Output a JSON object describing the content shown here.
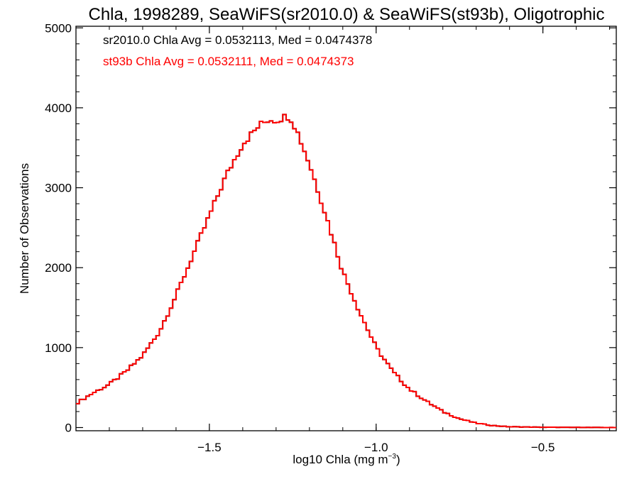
{
  "chart_data": {
    "type": "line",
    "title": "Chla, 1998289, SeaWiFS(sr2010.0) & SeaWiFS(st93b), Oligotrophic",
    "xlabel_prefix": "log10 Chla (mg m",
    "xlabel_exponent": "−3",
    "xlabel_suffix": ")",
    "ylabel": "Number of Observations",
    "xlim": [
      -1.9,
      -0.28
    ],
    "ylim": [
      -40,
      5020
    ],
    "x_ticks": [
      -1.5,
      -1.0,
      -0.5
    ],
    "x_tick_labels": [
      "−1.5",
      "−1.0",
      "−0.5"
    ],
    "y_ticks": [
      0,
      1000,
      2000,
      3000,
      4000,
      5000
    ],
    "y_tick_labels": [
      "0",
      "1000",
      "2000",
      "3000",
      "4000",
      "5000"
    ],
    "annotations": [
      {
        "text": "sr2010.0 Chla Avg = 0.0532113, Med = 0.0474378",
        "color": "#000000"
      },
      {
        "text": "st93b Chla Avg = 0.0532111, Med = 0.0474373",
        "color": "#ff0000"
      }
    ],
    "series": [
      {
        "name": "sr2010.0",
        "color": "#000000",
        "x": [
          -1.9,
          -1.85,
          -1.8,
          -1.75,
          -1.7,
          -1.65,
          -1.6,
          -1.55,
          -1.5,
          -1.45,
          -1.4,
          -1.35,
          -1.32,
          -1.3,
          -1.28,
          -1.26,
          -1.24,
          -1.2,
          -1.15,
          -1.1,
          -1.05,
          -1.0,
          -0.95,
          -0.9,
          -0.85,
          -0.8,
          -0.75,
          -0.7,
          -0.65,
          -0.6,
          -0.5,
          -0.4,
          -0.28
        ],
        "y": [
          300,
          430,
          540,
          700,
          900,
          1200,
          1650,
          2150,
          2650,
          3150,
          3550,
          3780,
          3860,
          3840,
          3880,
          3900,
          3740,
          3300,
          2650,
          1950,
          1450,
          1000,
          700,
          480,
          330,
          200,
          110,
          55,
          25,
          10,
          4,
          2,
          0
        ]
      },
      {
        "name": "st93b",
        "color": "#ff0000",
        "x": [
          -1.9,
          -1.85,
          -1.8,
          -1.75,
          -1.7,
          -1.65,
          -1.6,
          -1.55,
          -1.5,
          -1.45,
          -1.4,
          -1.35,
          -1.32,
          -1.3,
          -1.28,
          -1.26,
          -1.24,
          -1.2,
          -1.15,
          -1.1,
          -1.05,
          -1.0,
          -0.95,
          -0.9,
          -0.85,
          -0.8,
          -0.75,
          -0.7,
          -0.65,
          -0.6,
          -0.5,
          -0.4,
          -0.28
        ],
        "y": [
          300,
          430,
          540,
          700,
          900,
          1200,
          1650,
          2150,
          2650,
          3150,
          3550,
          3780,
          3860,
          3840,
          3880,
          3900,
          3740,
          3300,
          2650,
          1950,
          1450,
          1000,
          700,
          480,
          330,
          200,
          110,
          55,
          25,
          10,
          4,
          2,
          0
        ]
      }
    ]
  }
}
